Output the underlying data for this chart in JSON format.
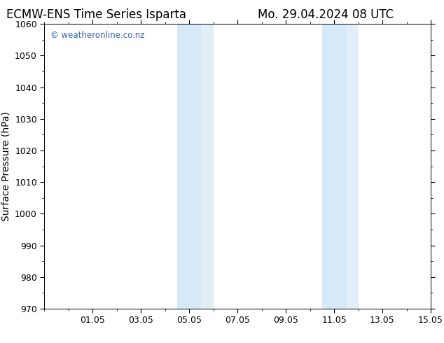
{
  "title_left": "ECMW-ENS Time Series Isparta",
  "title_right": "Mo. 29.04.2024 08 UTC",
  "ylabel": "Surface Pressure (hPa)",
  "ylim": [
    970,
    1060
  ],
  "yticks": [
    970,
    980,
    990,
    1000,
    1010,
    1020,
    1030,
    1040,
    1050,
    1060
  ],
  "xlim_start": 29.0,
  "xlim_end": 45.0,
  "xtick_positions": [
    31,
    33,
    35,
    37,
    39,
    41,
    43,
    45
  ],
  "xtick_labels": [
    "01.05",
    "03.05",
    "05.05",
    "07.05",
    "09.05",
    "11.05",
    "13.05",
    "15.05"
  ],
  "shaded_bands": [
    {
      "xstart": 34.5,
      "xend": 35.5,
      "color": "#d6e9f8"
    },
    {
      "xstart": 35.5,
      "xend": 36.0,
      "color": "#e2eff9"
    },
    {
      "xstart": 40.5,
      "xend": 41.5,
      "color": "#d6e9f8"
    },
    {
      "xstart": 41.5,
      "xend": 42.0,
      "color": "#e2eff9"
    }
  ],
  "background_color": "#ffffff",
  "plot_bg_color": "#ffffff",
  "watermark_text": "© weatheronline.co.nz",
  "watermark_color": "#3366aa",
  "title_fontsize": 12,
  "tick_fontsize": 9,
  "ylabel_fontsize": 10,
  "minor_tick_every": 1
}
